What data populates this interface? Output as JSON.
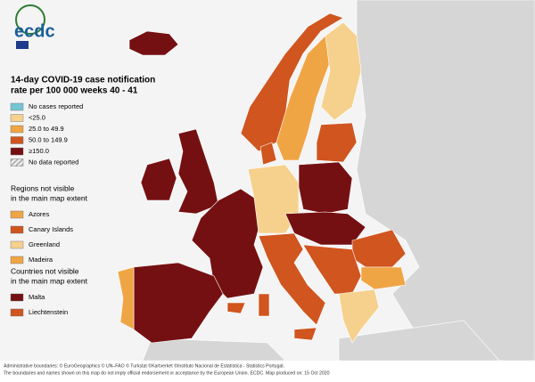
{
  "logo": "ecdc",
  "title": [
    "14-day COVID-19 case notification",
    "rate per 100 000 weeks 40 - 41"
  ],
  "legend": [
    {
      "label": "No cases reported",
      "color": "#74c6d2"
    },
    {
      "label": "<25.0",
      "color": "#f6d18d"
    },
    {
      "label": "25.0 to 49.9",
      "color": "#f0a545"
    },
    {
      "label": "50.0 to 149.9",
      "color": "#d0551f"
    },
    {
      "label": "≥150.0",
      "color": "#751012"
    },
    {
      "label": "No data reported"
    }
  ],
  "regions": {
    "title": [
      "Regions not visible",
      "in the main map extent"
    ],
    "items": [
      {
        "label": "Azores",
        "color": "#f0a545"
      },
      {
        "label": "Canary Islands",
        "color": "#d0551f"
      },
      {
        "label": "Greenland",
        "color": "#f6d18d"
      },
      {
        "label": "Madeira",
        "color": "#f0a545"
      }
    ]
  },
  "countries": {
    "title": [
      "Countries not visible",
      "in the main map extent"
    ],
    "items": [
      {
        "label": "Malta",
        "color": "#751012"
      },
      {
        "label": "Liechtenstein",
        "color": "#d0551f"
      }
    ]
  },
  "footer": [
    "Administrative boundaries: © EuroGeographics © UN–FAO © Turkstat ©Kartverket ©Instituto Nacional de Estatística - Statistics Portugal.",
    "The boundaries and names shown on this map do not imply official endorsement or acceptance by the European Union. ECDC. Map produced on: 15 Oct 2020"
  ]
}
